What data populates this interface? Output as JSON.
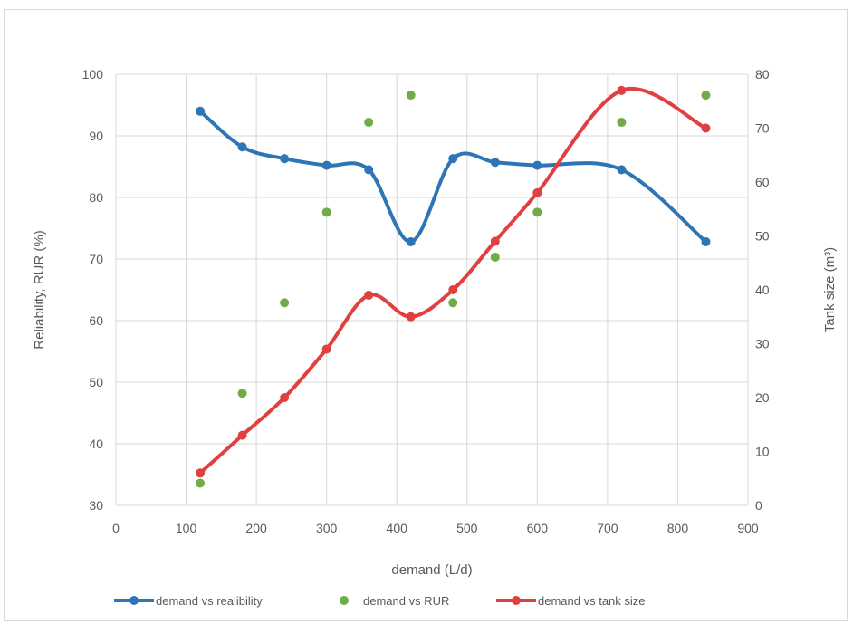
{
  "chart_data": {
    "type": "line",
    "title": "",
    "xlabel": "demand (L/d)",
    "ylabel": "Reliability, RUR (%)",
    "y2label": "Tank size (m³)",
    "xlim": [
      0,
      900
    ],
    "ylim": [
      30,
      100
    ],
    "y2lim": [
      0,
      80
    ],
    "x_ticks": [
      "0",
      "100",
      "200",
      "300",
      "400",
      "500",
      "600",
      "700",
      "800",
      "900"
    ],
    "y_ticks": [
      "30",
      "40",
      "50",
      "60",
      "70",
      "80",
      "90",
      "100"
    ],
    "y2_ticks": [
      "0",
      "10",
      "20",
      "30",
      "40",
      "50",
      "60",
      "70",
      "80"
    ],
    "grid": true,
    "legend_position": "bottom",
    "series": [
      {
        "name": "demand vs realibility",
        "axis": "left",
        "style": "smooth-line-markers",
        "color": "#2e75b6",
        "x": [
          120,
          180,
          240,
          300,
          360,
          420,
          480,
          540,
          600,
          720,
          840
        ],
        "y": [
          94,
          88.2,
          86.3,
          85.2,
          84.5,
          72.8,
          86.3,
          85.7,
          85.2,
          84.5,
          72.8
        ]
      },
      {
        "name": "demand vs RUR",
        "axis": "left",
        "style": "markers",
        "color": "#70ad47",
        "x": [
          120,
          180,
          240,
          300,
          360,
          420,
          480,
          540,
          600,
          720,
          840
        ],
        "y": [
          33.6,
          48.2,
          62.9,
          77.6,
          92.2,
          96.6,
          62.9,
          70.3,
          77.6,
          92.2,
          96.6
        ]
      },
      {
        "name": "demand vs tank size",
        "axis": "right",
        "style": "smooth-line-markers",
        "color": "#e0403f",
        "x": [
          120,
          180,
          240,
          300,
          360,
          420,
          480,
          540,
          600,
          720,
          840
        ],
        "y": [
          6,
          13,
          20,
          29,
          39,
          35,
          40,
          49,
          58,
          77,
          70
        ]
      }
    ]
  }
}
